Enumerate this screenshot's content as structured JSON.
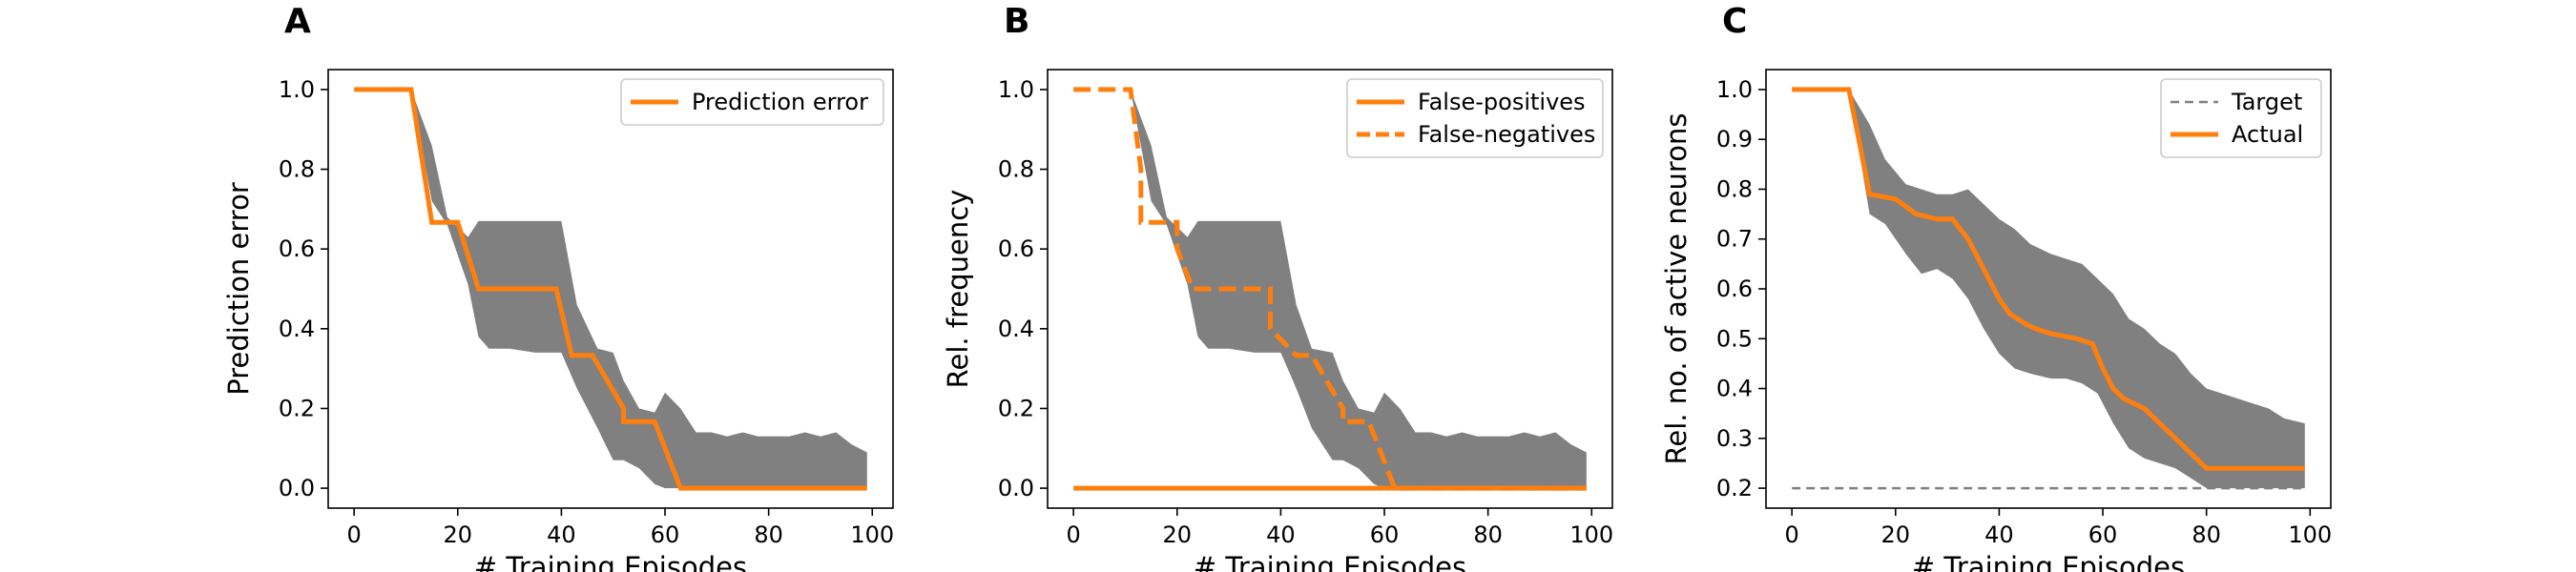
{
  "figure": {
    "colors": {
      "line": "#ff7f0e",
      "band": "#808080",
      "target": "#808080"
    }
  },
  "chart_data": [
    {
      "type": "line",
      "panel_label": "A",
      "xlabel": "# Training Episodes",
      "ylabel": "Prediction error",
      "xlim": [
        -5,
        104
      ],
      "ylim": [
        -0.05,
        1.05
      ],
      "xticks": [
        0,
        20,
        40,
        60,
        80,
        100
      ],
      "yticks": [
        0.0,
        0.2,
        0.4,
        0.6,
        0.8,
        1.0
      ],
      "tick_decimals": 1,
      "legend_position": "upper-right",
      "series": [
        {
          "name": "Prediction error",
          "style": "solid",
          "x": [
            0,
            11,
            15,
            15,
            20,
            20,
            24,
            24,
            39,
            39,
            42,
            42,
            46,
            52,
            52,
            58,
            58,
            63,
            63,
            99
          ],
          "y": [
            1.0,
            1.0,
            0.667,
            0.667,
            0.667,
            0.667,
            0.5,
            0.5,
            0.5,
            0.5,
            0.333,
            0.333,
            0.333,
            0.2,
            0.167,
            0.167,
            0.167,
            0.0,
            0.0,
            0.0
          ]
        }
      ],
      "band": {
        "x": [
          0,
          11,
          15,
          18,
          22,
          24,
          26,
          30,
          35,
          40,
          43,
          47,
          50,
          52,
          55,
          58,
          60,
          63,
          66,
          69,
          72,
          75,
          78,
          81,
          84,
          87,
          90,
          93,
          96,
          99
        ],
        "upper": [
          1.0,
          1.0,
          0.86,
          0.68,
          0.63,
          0.67,
          0.67,
          0.67,
          0.67,
          0.67,
          0.46,
          0.35,
          0.34,
          0.27,
          0.2,
          0.19,
          0.24,
          0.2,
          0.14,
          0.14,
          0.13,
          0.14,
          0.13,
          0.13,
          0.13,
          0.14,
          0.13,
          0.14,
          0.11,
          0.09
        ],
        "lower": [
          1.0,
          1.0,
          0.72,
          0.66,
          0.51,
          0.38,
          0.35,
          0.35,
          0.34,
          0.34,
          0.25,
          0.15,
          0.07,
          0.07,
          0.05,
          0.01,
          0.0,
          0.0,
          0.0,
          0.0,
          0.0,
          0.0,
          0.0,
          0.0,
          0.0,
          0.0,
          0.0,
          0.0,
          0.0,
          0.0
        ]
      }
    },
    {
      "type": "line",
      "panel_label": "B",
      "xlabel": "# Training Episodes",
      "ylabel": "Rel. frequency",
      "xlim": [
        -5,
        104
      ],
      "ylim": [
        -0.05,
        1.05
      ],
      "xticks": [
        0,
        20,
        40,
        60,
        80,
        100
      ],
      "yticks": [
        0.0,
        0.2,
        0.4,
        0.6,
        0.8,
        1.0
      ],
      "tick_decimals": 1,
      "legend_position": "upper-right",
      "series": [
        {
          "name": "False-positives",
          "style": "solid",
          "x": [
            0,
            99
          ],
          "y": [
            0.0,
            0.0
          ]
        },
        {
          "name": "False-negatives",
          "style": "dashed",
          "x": [
            0,
            11,
            13,
            13,
            15,
            15,
            20,
            20,
            23,
            23,
            38,
            38,
            43,
            43,
            46,
            52,
            52,
            57,
            57,
            62,
            62,
            99
          ],
          "y": [
            1.0,
            1.0,
            0.8,
            0.667,
            0.667,
            0.667,
            0.667,
            0.6,
            0.5,
            0.5,
            0.5,
            0.4,
            0.333,
            0.333,
            0.333,
            0.2,
            0.167,
            0.167,
            0.167,
            0.0,
            0.0,
            0.0
          ]
        }
      ],
      "band": {
        "x": [
          0,
          11,
          15,
          18,
          22,
          24,
          26,
          30,
          35,
          40,
          43,
          46,
          50,
          52,
          55,
          58,
          60,
          63,
          66,
          69,
          72,
          75,
          78,
          81,
          84,
          87,
          90,
          93,
          96,
          99
        ],
        "upper": [
          1.0,
          1.0,
          0.86,
          0.68,
          0.63,
          0.67,
          0.67,
          0.67,
          0.67,
          0.67,
          0.46,
          0.35,
          0.34,
          0.27,
          0.2,
          0.19,
          0.24,
          0.2,
          0.14,
          0.14,
          0.13,
          0.14,
          0.13,
          0.13,
          0.13,
          0.14,
          0.13,
          0.14,
          0.11,
          0.09
        ],
        "lower": [
          1.0,
          1.0,
          0.72,
          0.66,
          0.51,
          0.38,
          0.35,
          0.35,
          0.34,
          0.34,
          0.25,
          0.15,
          0.07,
          0.07,
          0.05,
          0.01,
          0.0,
          0.0,
          0.0,
          0.0,
          0.0,
          0.0,
          0.0,
          0.0,
          0.0,
          0.0,
          0.0,
          0.0,
          0.0,
          0.0
        ]
      }
    },
    {
      "type": "line",
      "panel_label": "C",
      "xlabel": "# Training Episodes",
      "ylabel": "Rel. no. of active neurons",
      "xlim": [
        -5,
        104
      ],
      "ylim": [
        0.16,
        1.04
      ],
      "xticks": [
        0,
        20,
        40,
        60,
        80,
        100
      ],
      "yticks": [
        0.2,
        0.3,
        0.4,
        0.5,
        0.6,
        0.7,
        0.8,
        0.9,
        1.0
      ],
      "tick_decimals": 1,
      "legend_position": "upper-right",
      "series": [
        {
          "name": "Target",
          "style": "dashed-thin",
          "x": [
            0,
            99
          ],
          "y": [
            0.2,
            0.2
          ]
        },
        {
          "name": "Actual",
          "style": "solid",
          "x": [
            0,
            11,
            15,
            20,
            24,
            28,
            31,
            34,
            36,
            38,
            40,
            42,
            45,
            47,
            50,
            55,
            58,
            60,
            62,
            64,
            66,
            68,
            70,
            72,
            74,
            76,
            78,
            80,
            99
          ],
          "y": [
            1.0,
            1.0,
            0.79,
            0.78,
            0.75,
            0.74,
            0.74,
            0.7,
            0.66,
            0.62,
            0.58,
            0.55,
            0.53,
            0.52,
            0.51,
            0.5,
            0.49,
            0.44,
            0.4,
            0.38,
            0.37,
            0.36,
            0.34,
            0.32,
            0.3,
            0.28,
            0.26,
            0.24,
            0.24
          ]
        }
      ],
      "band": {
        "x": [
          0,
          11,
          15,
          18,
          22,
          25,
          28,
          31,
          34,
          37,
          40,
          43,
          46,
          50,
          53,
          56,
          59,
          62,
          65,
          68,
          71,
          74,
          77,
          80,
          83,
          86,
          89,
          92,
          95,
          99
        ],
        "upper": [
          1.0,
          1.0,
          0.93,
          0.86,
          0.81,
          0.8,
          0.79,
          0.79,
          0.8,
          0.77,
          0.74,
          0.72,
          0.69,
          0.67,
          0.66,
          0.65,
          0.62,
          0.59,
          0.54,
          0.52,
          0.49,
          0.47,
          0.43,
          0.4,
          0.39,
          0.38,
          0.37,
          0.36,
          0.34,
          0.33
        ],
        "lower": [
          1.0,
          1.0,
          0.75,
          0.73,
          0.67,
          0.63,
          0.64,
          0.62,
          0.58,
          0.52,
          0.47,
          0.44,
          0.43,
          0.42,
          0.42,
          0.41,
          0.39,
          0.33,
          0.28,
          0.26,
          0.25,
          0.24,
          0.22,
          0.2,
          0.2,
          0.2,
          0.2,
          0.2,
          0.2,
          0.2
        ]
      }
    }
  ]
}
